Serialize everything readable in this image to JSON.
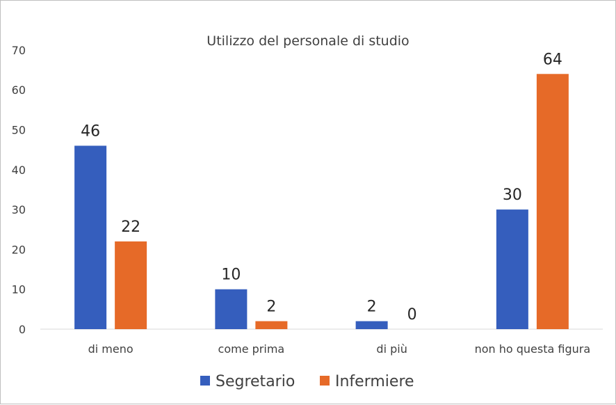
{
  "chart_data": {
    "type": "bar",
    "title": "Utilizzo del personale di studio",
    "xlabel": "",
    "ylabel": "",
    "ylim": [
      0,
      70
    ],
    "yticks": [
      0,
      10,
      20,
      30,
      40,
      50,
      60,
      70
    ],
    "grid": false,
    "legend_position": "bottom",
    "categories": [
      "di meno",
      "come prima",
      "di più",
      "non ho questa figura"
    ],
    "series": [
      {
        "name": "Segretario",
        "color": "#355EBD",
        "values": [
          46,
          10,
          2,
          30
        ]
      },
      {
        "name": "Infermiere",
        "color": "#E66A28",
        "values": [
          22,
          2,
          0,
          64
        ]
      }
    ]
  }
}
